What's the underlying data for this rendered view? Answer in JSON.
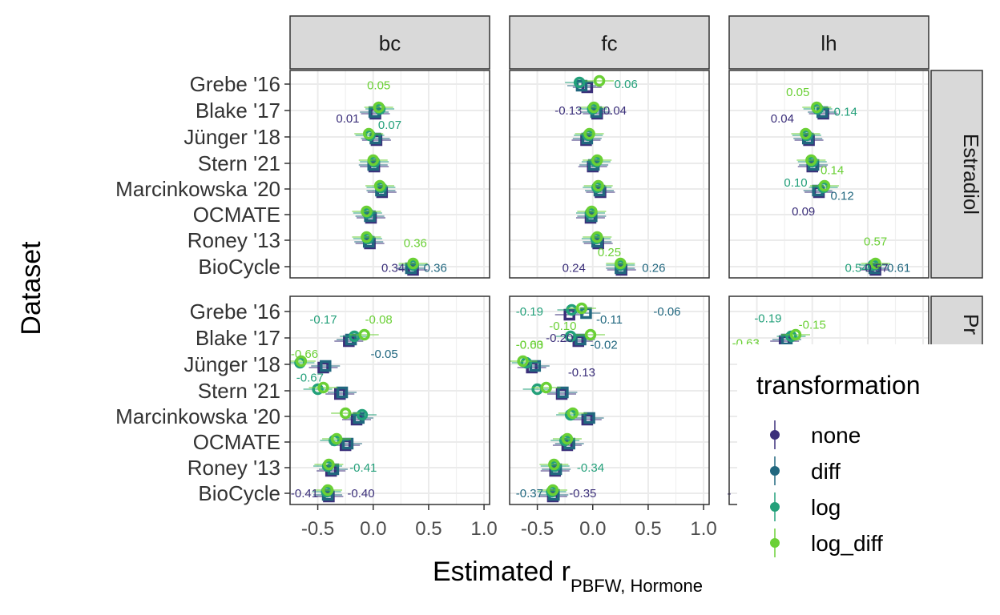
{
  "chart_data": {
    "type": "scatter",
    "xlabel_main": "Estimated r",
    "xlabel_sub": "PBFW, Hormone",
    "ylabel": "Dataset",
    "xlim": [
      -0.75,
      1.05
    ],
    "x_ticks": [
      "-0.5",
      "0.0",
      "0.5",
      "1.0"
    ],
    "x_tick_values": [
      -0.5,
      0.0,
      0.5,
      1.0
    ],
    "grid": true,
    "facet_cols": [
      "bc",
      "fc",
      "lh"
    ],
    "facet_rows": [
      "Estradiol",
      "Progesterone"
    ],
    "facet_rows_shown": [
      "Estradiol",
      "Pr"
    ],
    "categories": [
      "Grebe '16",
      "Blake '17",
      "Jünger '18",
      "Stern '21",
      "Marcinkowska '20",
      "OCMATE",
      "Roney '13",
      "BioCycle"
    ],
    "series": [
      {
        "name": "none",
        "color": "#3b2f7a",
        "shape": "square"
      },
      {
        "name": "diff",
        "color": "#21677f",
        "shape": "square"
      },
      {
        "name": "log",
        "color": "#23a07a",
        "shape": "circle"
      },
      {
        "name": "log_diff",
        "color": "#6ad035",
        "shape": "circle"
      }
    ],
    "legend": {
      "title": "transformation",
      "position": "right",
      "items": [
        "none",
        "diff",
        "log",
        "log_diff"
      ]
    },
    "panels": [
      {
        "row": "Estradiol",
        "col": "bc",
        "points": {
          "none": [
            null,
            0.02,
            0.03,
            0.01,
            0.08,
            -0.02,
            -0.03,
            0.36
          ],
          "diff": [
            null,
            0.01,
            0.02,
            0.0,
            0.07,
            -0.03,
            -0.04,
            0.34
          ],
          "log": [
            null,
            0.06,
            -0.03,
            0.01,
            0.07,
            -0.05,
            -0.05,
            0.36
          ],
          "log_diff": [
            null,
            0.05,
            -0.04,
            0.0,
            0.06,
            -0.06,
            -0.06,
            0.36
          ]
        },
        "labels": [
          {
            "text": "0.05",
            "series": "log_diff",
            "x": 0.05,
            "row": 1,
            "dy": -0.95
          },
          {
            "text": "0.01",
            "series": "none",
            "x": -0.23,
            "row": 1,
            "dy": 0.3
          },
          {
            "text": "0.07",
            "series": "log",
            "x": 0.15,
            "row": 1,
            "dy": 0.55
          },
          {
            "text": "0.36",
            "series": "log_diff",
            "x": 0.38,
            "row": 7,
            "dy": -0.9
          },
          {
            "text": "0.34",
            "series": "none",
            "x": 0.18,
            "row": 7,
            "dy": 0.05
          },
          {
            "text": "0.36",
            "series": "diff",
            "x": 0.56,
            "row": 7,
            "dy": 0.05
          }
        ]
      },
      {
        "row": "Estradiol",
        "col": "fc",
        "points": {
          "none": [
            -0.05,
            0.04,
            -0.06,
            0.0,
            0.07,
            -0.02,
            0.05,
            0.26
          ],
          "diff": [
            -0.1,
            0.03,
            -0.05,
            0.01,
            0.06,
            -0.01,
            0.04,
            0.25
          ],
          "log": [
            -0.12,
            0.0,
            -0.04,
            0.03,
            0.04,
            -0.02,
            0.03,
            0.25
          ],
          "log_diff": [
            0.06,
            0.01,
            -0.03,
            0.04,
            0.05,
            -0.01,
            0.04,
            0.25
          ]
        },
        "labels": [
          {
            "text": "0.06",
            "series": "log",
            "x": 0.3,
            "row": 0,
            "dy": 0.0
          },
          {
            "text": "-0.13",
            "series": "none",
            "x": -0.22,
            "row": 1,
            "dy": 0.0
          },
          {
            "text": "0.04",
            "series": "none",
            "x": 0.2,
            "row": 1,
            "dy": 0.0
          },
          {
            "text": "0.25",
            "series": "log_diff",
            "x": 0.15,
            "row": 7,
            "dy": -0.55
          },
          {
            "text": "0.24",
            "series": "none",
            "x": -0.17,
            "row": 7,
            "dy": 0.05
          },
          {
            "text": "0.26",
            "series": "diff",
            "x": 0.55,
            "row": 7,
            "dy": 0.05
          }
        ]
      },
      {
        "row": "Estradiol",
        "col": "lh",
        "points": {
          "none": [
            null,
            0.1,
            -0.03,
            0.0,
            0.06,
            null,
            null,
            0.57
          ],
          "diff": [
            null,
            0.09,
            -0.04,
            0.01,
            0.05,
            null,
            null,
            0.56
          ],
          "log": [
            null,
            0.05,
            -0.05,
            0.0,
            0.1,
            null,
            null,
            0.55
          ],
          "log_diff": [
            null,
            0.04,
            -0.06,
            -0.01,
            0.11,
            null,
            null,
            0.57
          ]
        },
        "labels": [
          {
            "text": "0.05",
            "series": "log_diff",
            "x": -0.13,
            "row": 0,
            "dy": 0.3
          },
          {
            "text": "0.14",
            "series": "log",
            "x": 0.3,
            "row": 1,
            "dy": 0.05
          },
          {
            "text": "0.04",
            "series": "none",
            "x": -0.27,
            "row": 1,
            "dy": 0.3
          },
          {
            "text": "0.14",
            "series": "log_diff",
            "x": 0.18,
            "row": 3,
            "dy": 0.25
          },
          {
            "text": "0.10",
            "series": "log",
            "x": -0.15,
            "row": 4,
            "dy": -0.25
          },
          {
            "text": "0.12",
            "series": "diff",
            "x": 0.27,
            "row": 4,
            "dy": 0.25
          },
          {
            "text": "0.09",
            "series": "none",
            "x": -0.08,
            "row": 4,
            "dy": 0.85
          },
          {
            "text": "0.57",
            "series": "log_diff",
            "x": 0.57,
            "row": 7,
            "dy": -0.95
          },
          {
            "text": "0.54",
            "series": "log",
            "x": 0.4,
            "row": 7,
            "dy": 0.05
          },
          {
            "text": "0.57",
            "series": "none",
            "x": 0.58,
            "row": 7,
            "dy": 0.05
          },
          {
            "text": "0.61",
            "series": "diff",
            "x": 0.78,
            "row": 7,
            "dy": 0.05
          }
        ]
      },
      {
        "row": "Progesterone",
        "col": "bc",
        "points": {
          "none": [
            null,
            -0.22,
            -0.45,
            -0.3,
            -0.15,
            -0.25,
            -0.38,
            -0.4
          ],
          "diff": [
            null,
            -0.2,
            -0.43,
            -0.28,
            -0.13,
            -0.23,
            -0.36,
            -0.41
          ],
          "log": [
            null,
            -0.17,
            -0.66,
            -0.5,
            -0.1,
            -0.35,
            -0.41,
            -0.42
          ],
          "log_diff": [
            null,
            -0.08,
            -0.65,
            -0.45,
            -0.25,
            -0.33,
            -0.4,
            -0.41
          ]
        },
        "labels": [
          {
            "text": "-0.17",
            "series": "log",
            "x": -0.45,
            "row": 0,
            "dy": 0.3
          },
          {
            "text": "-0.08",
            "series": "log_diff",
            "x": 0.05,
            "row": 0,
            "dy": 0.3
          },
          {
            "text": "-0.66",
            "series": "log_diff",
            "x": -0.62,
            "row": 1,
            "dy": 0.6
          },
          {
            "text": "-0.05",
            "series": "diff",
            "x": 0.1,
            "row": 1,
            "dy": 0.6
          },
          {
            "text": "-0.67",
            "series": "log",
            "x": -0.57,
            "row": 2,
            "dy": 0.5
          },
          {
            "text": "-0.41",
            "series": "log",
            "x": -0.09,
            "row": 6,
            "dy": 0.0
          },
          {
            "text": "-0.41",
            "series": "none",
            "x": -0.62,
            "row": 7,
            "dy": 0.0
          },
          {
            "text": "-0.40",
            "series": "none",
            "x": -0.11,
            "row": 7,
            "dy": 0.0
          }
        ]
      },
      {
        "row": "Progesterone",
        "col": "fc",
        "points": {
          "none": [
            -0.21,
            -0.13,
            -0.55,
            -0.28,
            -0.05,
            -0.23,
            -0.34,
            -0.36
          ],
          "diff": [
            -0.06,
            -0.11,
            -0.52,
            -0.27,
            -0.03,
            -0.21,
            -0.33,
            -0.35
          ],
          "log": [
            -0.19,
            -0.2,
            -0.6,
            -0.5,
            -0.2,
            -0.25,
            -0.34,
            -0.37
          ],
          "log_diff": [
            -0.1,
            -0.02,
            -0.63,
            -0.42,
            -0.18,
            -0.23,
            -0.35,
            -0.36
          ]
        },
        "labels": [
          {
            "text": "-0.19",
            "series": "log",
            "x": -0.57,
            "row": 0,
            "dy": 0.0
          },
          {
            "text": "-0.06",
            "series": "diff",
            "x": 0.67,
            "row": 0,
            "dy": 0.0
          },
          {
            "text": "-0.11",
            "series": "diff",
            "x": 0.15,
            "row": 0,
            "dy": 0.3
          },
          {
            "text": "-0.10",
            "series": "log_diff",
            "x": -0.27,
            "row": 1,
            "dy": -0.45
          },
          {
            "text": "-0.20",
            "series": "none",
            "x": -0.3,
            "row": 1,
            "dy": 0.0
          },
          {
            "text": "-0.00",
            "series": "log_diff",
            "x": -0.57,
            "row": 1,
            "dy": 0.25
          },
          {
            "text": "-0.02",
            "series": "diff",
            "x": 0.1,
            "row": 1,
            "dy": 0.25
          },
          {
            "text": "-0.63",
            "series": "log_diff",
            "x": -0.57,
            "row": 1,
            "dy": 0.25
          },
          {
            "text": "-0.13",
            "series": "none",
            "x": -0.1,
            "row": 2,
            "dy": 0.3
          },
          {
            "text": "-0.34",
            "series": "log",
            "x": -0.02,
            "row": 6,
            "dy": 0.0
          },
          {
            "text": "-0.37",
            "series": "diff",
            "x": -0.57,
            "row": 7,
            "dy": 0.0
          },
          {
            "text": "-0.35",
            "series": "none",
            "x": -0.09,
            "row": 7,
            "dy": 0.0
          }
        ]
      },
      {
        "row": "Progesterone",
        "col": "lh",
        "points": {
          "none": [
            null,
            -0.25,
            null,
            null,
            null,
            null,
            null,
            null
          ],
          "diff": [
            null,
            -0.23,
            null,
            null,
            null,
            null,
            null,
            null
          ],
          "log": [
            null,
            -0.19,
            null,
            null,
            null,
            null,
            null,
            null
          ],
          "log_diff": [
            null,
            -0.15,
            null,
            null,
            null,
            null,
            null,
            null
          ]
        },
        "labels": [
          {
            "text": "-0.19",
            "series": "log",
            "x": -0.4,
            "row": 0,
            "dy": 0.25
          },
          {
            "text": "-0.15",
            "series": "log_diff",
            "x": 0.0,
            "row": 0,
            "dy": 0.5
          },
          {
            "text": "-0.63",
            "series": "log_diff",
            "x": -0.6,
            "row": 1,
            "dy": 0.2
          },
          {
            "text": "-",
            "series": "none",
            "x": -0.75,
            "row": 7,
            "dy": 0.0
          }
        ]
      }
    ]
  }
}
